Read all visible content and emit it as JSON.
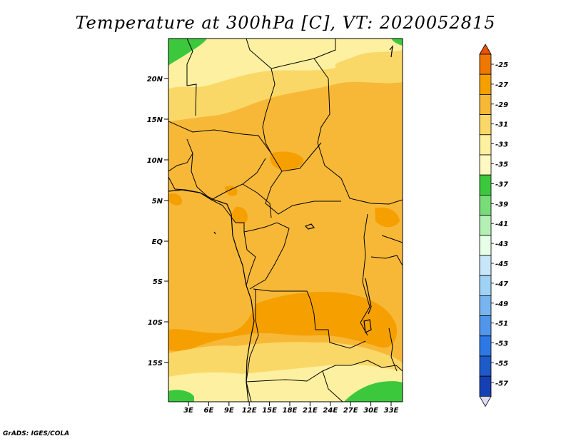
{
  "title": "Temperature at 300hPa [C], VT: 2020052815",
  "credit": "GrADS: IGES/COLA",
  "map": {
    "lat_labels": [
      "20N",
      "15N",
      "10N",
      "5N",
      "EQ",
      "5S",
      "10S",
      "15S"
    ],
    "lon_labels": [
      "3E",
      "6E",
      "9E",
      "12E",
      "15E",
      "18E",
      "21E",
      "24E",
      "27E",
      "30E",
      "33E"
    ]
  },
  "colorbar": {
    "levels": [
      "-25",
      "-27",
      "-29",
      "-31",
      "-33",
      "-35",
      "-37",
      "-39",
      "-41",
      "-43",
      "-45",
      "-47",
      "-49",
      "-51",
      "-53",
      "-55",
      "-57"
    ],
    "colors": [
      "#f05000",
      "#f07800",
      "#f5a000",
      "#f7b838",
      "#fad868",
      "#fdf0a0",
      "#fff8c0",
      "#3cc83c",
      "#78dc78",
      "#b4f0b4",
      "#e6ffe6",
      "#c8e6fa",
      "#a0d2f5",
      "#78b4f0",
      "#5096eb",
      "#2e78e6",
      "#1e5ac8",
      "#1440b4",
      "#0a1e82"
    ]
  }
}
